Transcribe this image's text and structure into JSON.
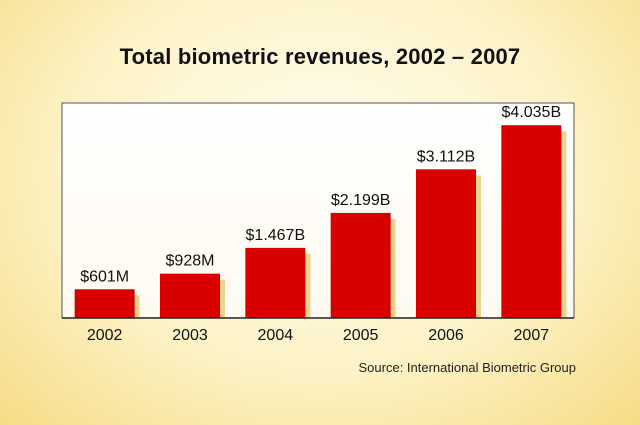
{
  "chart_data": {
    "type": "bar",
    "title": "Total biometric revenues, 2002 – 2007",
    "source": "Source: International Biometric Group",
    "categories": [
      "2002",
      "2003",
      "2004",
      "2005",
      "2006",
      "2007"
    ],
    "values": [
      0.601,
      0.928,
      1.467,
      2.199,
      3.112,
      4.035
    ],
    "value_labels": [
      "$601M",
      "$928M",
      "$1.467B",
      "$2.199B",
      "$3.112B",
      "$4.035B"
    ],
    "unit": "billions USD",
    "ylim": [
      0,
      4.5
    ],
    "grid": false,
    "legend": "none",
    "bar_color": "#d90000",
    "shadow_color": "#e8c46a",
    "plot_background": "#ffffff"
  }
}
